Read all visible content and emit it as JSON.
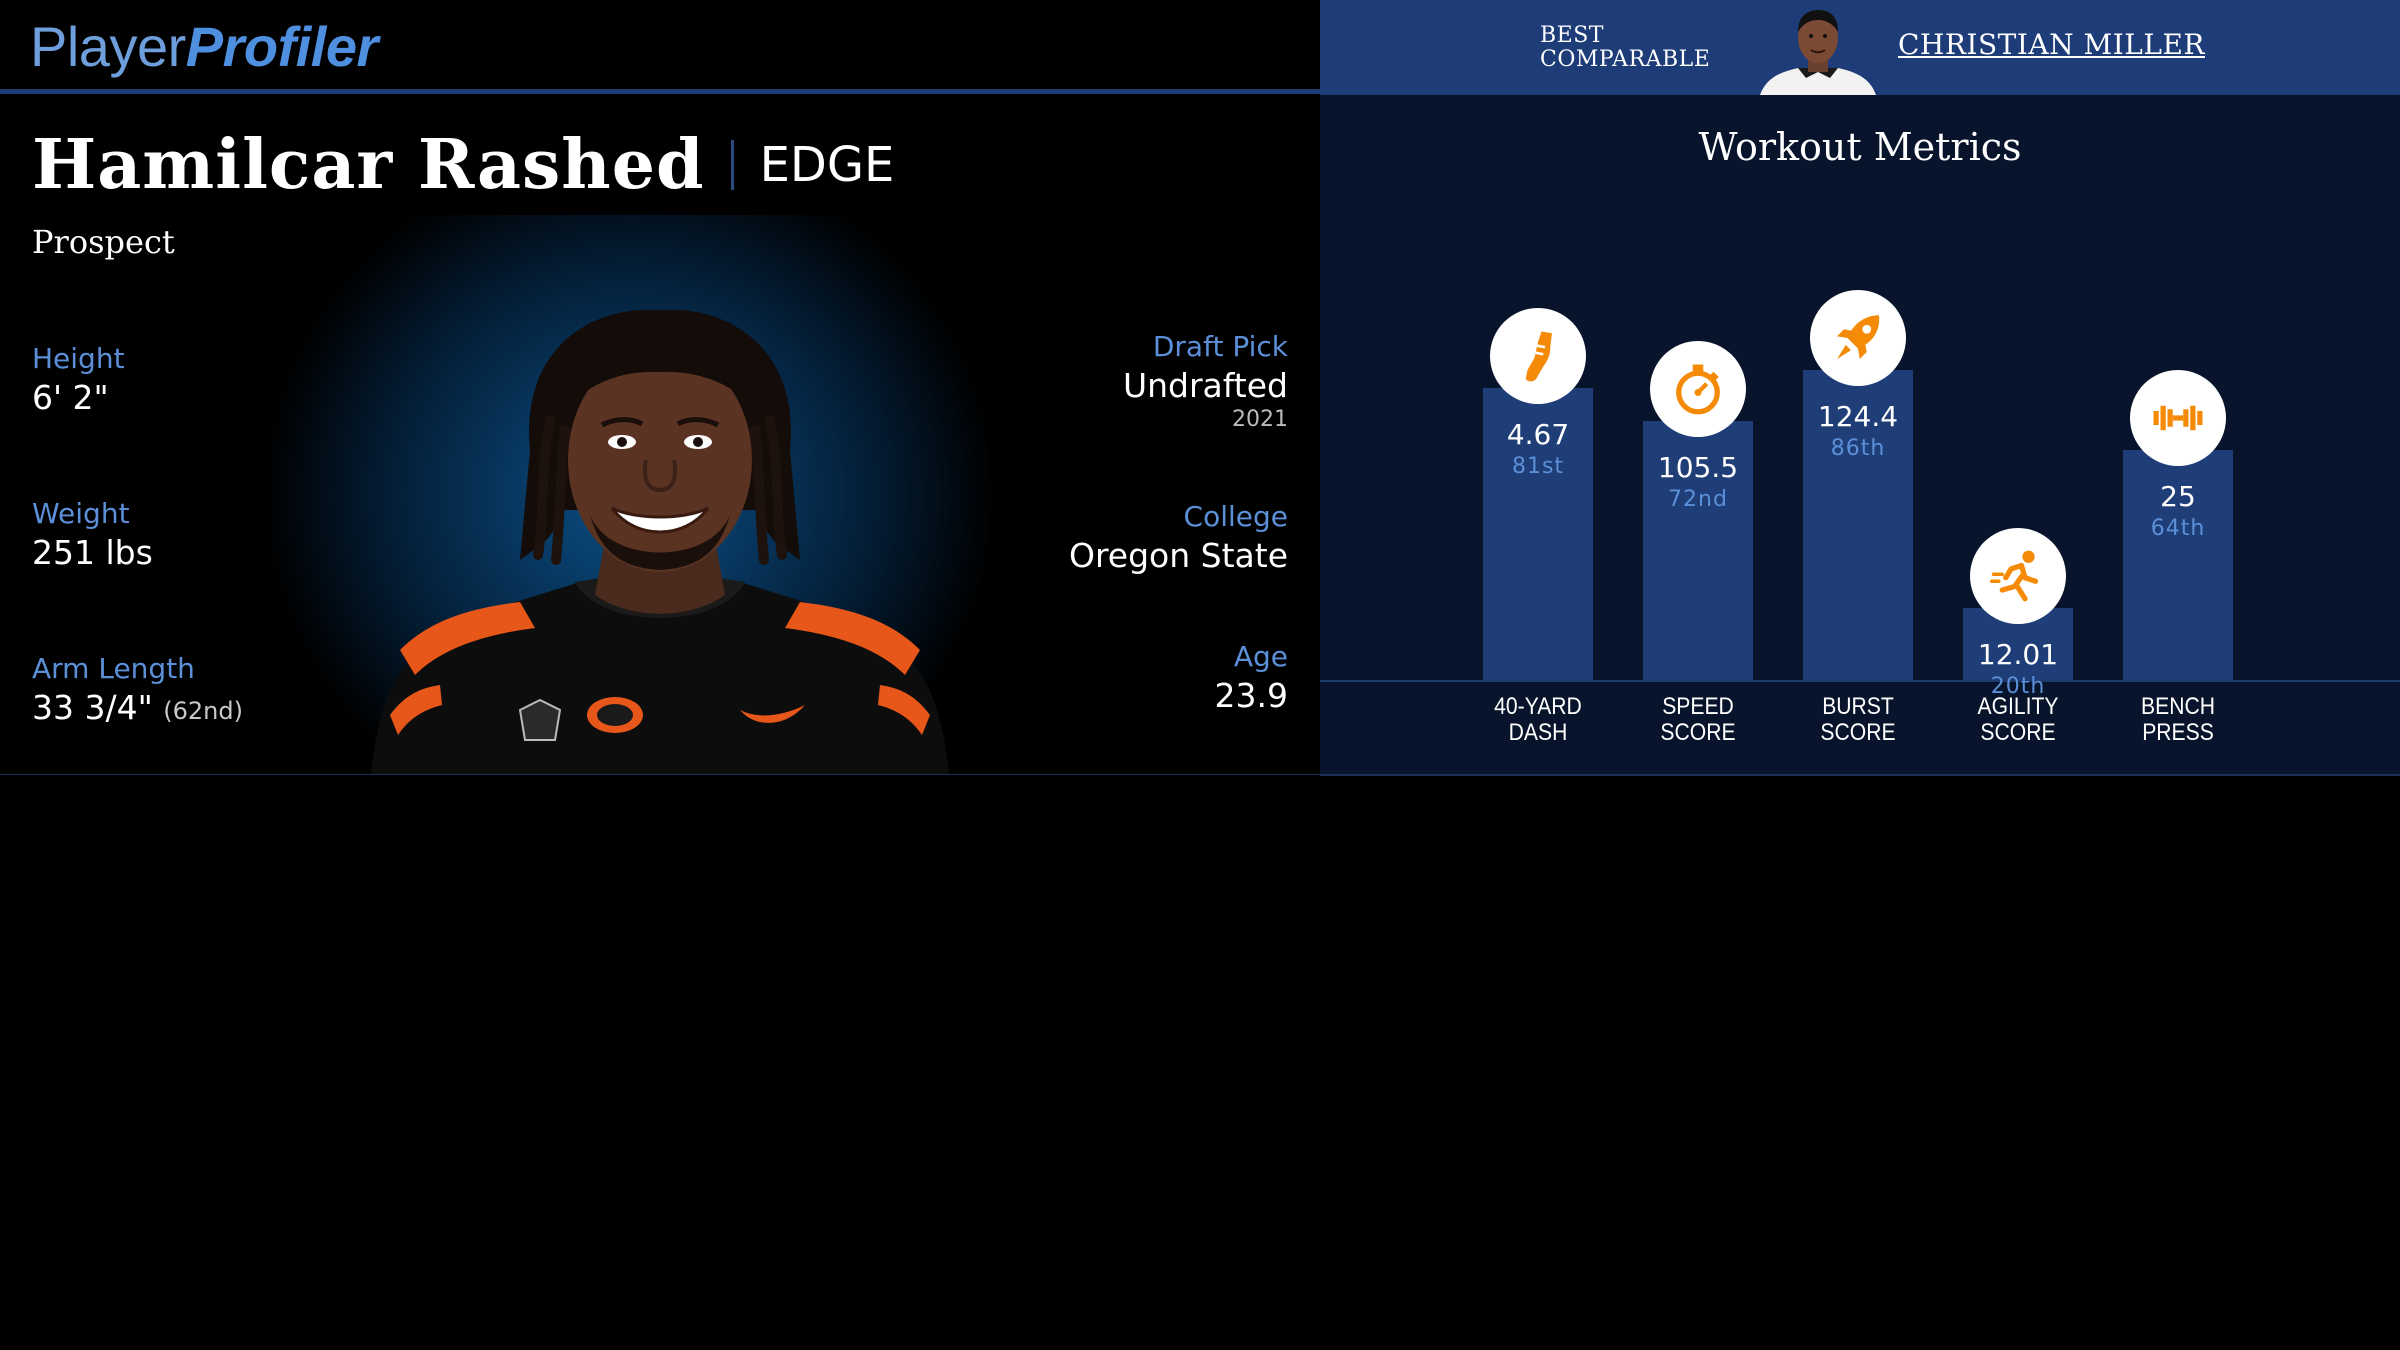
{
  "brand": {
    "part1": "Player",
    "part2": "Profiler"
  },
  "player": {
    "name": "Hamilcar Rashed",
    "position": "EDGE",
    "status": "Prospect"
  },
  "stats_left": {
    "height_label": "Height",
    "height_value": "6' 2\"",
    "weight_label": "Weight",
    "weight_value": "251 lbs",
    "arm_label": "Arm Length",
    "arm_value": "33 3/4\"",
    "arm_rank": "(62nd)"
  },
  "stats_right": {
    "draft_label": "Draft Pick",
    "draft_value": "Undrafted",
    "draft_year": "2021",
    "college_label": "College",
    "college_value": "Oregon State",
    "age_label": "Age",
    "age_value": "23.9"
  },
  "comparable": {
    "label_line1": "BEST",
    "label_line2": "COMPARABLE",
    "name": "CHRISTIAN MILLER"
  },
  "workout": {
    "title": "Workout Metrics",
    "metrics": [
      {
        "value": "4.67",
        "percentile": "81st",
        "label1": "40-YARD",
        "label2": "DASH",
        "pct": 81,
        "icon": "shoe-icon"
      },
      {
        "value": "105.5",
        "percentile": "72nd",
        "label1": "SPEED",
        "label2": "SCORE",
        "pct": 72,
        "icon": "stopwatch-icon"
      },
      {
        "value": "124.4",
        "percentile": "86th",
        "label1": "BURST",
        "label2": "SCORE",
        "pct": 86,
        "icon": "rocket-icon"
      },
      {
        "value": "12.01",
        "percentile": "20th",
        "label1": "AGILITY",
        "label2": "SCORE",
        "pct": 20,
        "icon": "runner-icon"
      },
      {
        "value": "25",
        "percentile": "64th",
        "label1": "BENCH",
        "label2": "PRESS",
        "pct": 64,
        "icon": "dumbbell-icon"
      }
    ]
  },
  "colors": {
    "accent_blue": "#5b8fd8",
    "header_blue": "#1e3d78",
    "icon_orange": "#f58a07"
  }
}
